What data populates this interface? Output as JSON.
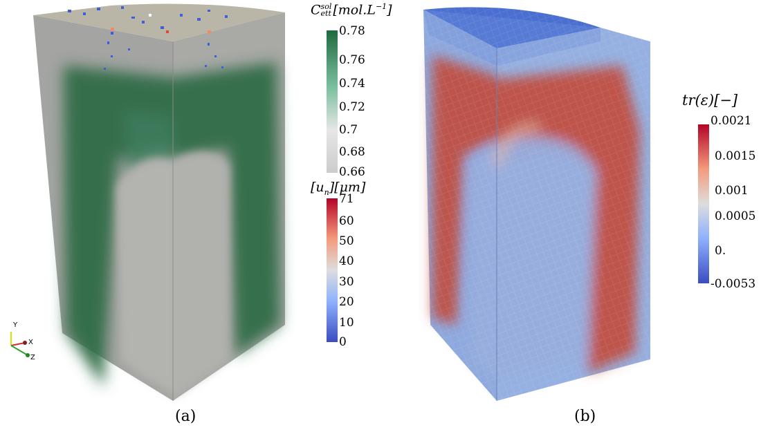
{
  "figure": {
    "panel_a_caption": "(a)",
    "panel_b_caption": "(b)"
  },
  "colorbars": {
    "concentration": {
      "title_main": "C",
      "title_sup": "sol",
      "title_sub": "ett",
      "title_unit": "[mol.L",
      "title_unit_exp": "−1",
      "title_unit_close": "]",
      "colors": [
        "#cccccc",
        "#e4e4e4",
        "#7fc0a4",
        "#1e6b3e"
      ],
      "ticks": [
        "0.78",
        "0.76",
        "0.74",
        "0.72",
        "0.7",
        "0.68",
        "0.66"
      ]
    },
    "displacement": {
      "title": "[u",
      "title_sub": "n",
      "title_rest": "][μm]",
      "colors": [
        "#3b4cc0",
        "#8db0fe",
        "#dddddd",
        "#f49a7b",
        "#b40426"
      ],
      "ticks": [
        "71",
        "60",
        "50",
        "40",
        "30",
        "20",
        "10",
        "0"
      ]
    },
    "strain": {
      "title": "tr(ε)[−]",
      "colors": [
        "#3b4cc0",
        "#8db0fe",
        "#dddddd",
        "#f49a7b",
        "#b40426"
      ],
      "ticks": [
        "0.0021",
        "0.0015",
        "0.001",
        "0.0005",
        "0.",
        "-0.0053"
      ]
    }
  },
  "axes_triad": {
    "y_label": "Y",
    "x_label": "X",
    "z_label": "Z"
  }
}
